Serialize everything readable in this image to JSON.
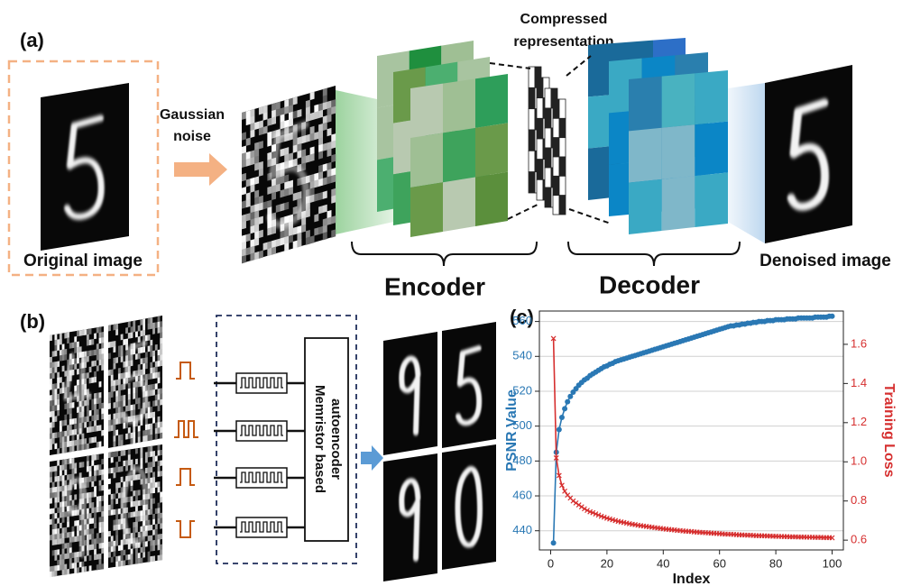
{
  "panels": {
    "a": {
      "label": "(a)",
      "input_caption": "Original image",
      "noise_label": [
        "Gaussian",
        "noise"
      ],
      "compressed_label": [
        "Compressed",
        "representation"
      ],
      "encoder_label": "Encoder",
      "decoder_label": "Decoder",
      "output_caption": "Denoised image"
    },
    "b": {
      "label": "(b)",
      "block_label": [
        "Memristor based",
        "autoencoder"
      ]
    },
    "c": {
      "label": "(c)"
    }
  },
  "chart_data": {
    "type": "line",
    "xlabel": "Index",
    "ylabel": "PSNR Value",
    "y2label": "Training Loss",
    "x": [
      1,
      2,
      3,
      4,
      5,
      6,
      7,
      8,
      9,
      10,
      11,
      12,
      13,
      14,
      15,
      16,
      17,
      18,
      19,
      20,
      21,
      22,
      23,
      24,
      25,
      26,
      27,
      28,
      29,
      30,
      31,
      32,
      33,
      34,
      35,
      36,
      37,
      38,
      39,
      40,
      41,
      42,
      43,
      44,
      45,
      46,
      47,
      48,
      49,
      50,
      51,
      52,
      53,
      54,
      55,
      56,
      57,
      58,
      59,
      60,
      61,
      62,
      63,
      64,
      65,
      66,
      67,
      68,
      69,
      70,
      71,
      72,
      73,
      74,
      75,
      76,
      77,
      78,
      79,
      80,
      81,
      82,
      83,
      84,
      85,
      86,
      87,
      88,
      89,
      90,
      91,
      92,
      93,
      94,
      95,
      96,
      97,
      98,
      99,
      100
    ],
    "xlim": [
      -4,
      104
    ],
    "xticks": [
      0,
      20,
      40,
      60,
      80,
      100
    ],
    "ylim": [
      429,
      566
    ],
    "yticks": [
      440,
      460,
      480,
      500,
      520,
      540,
      560
    ],
    "y2lim": [
      0.55,
      1.77
    ],
    "y2ticks": [
      0.6,
      0.8,
      {
        "value": 1,
        "label": "1.0"
      },
      1.2,
      1.4,
      1.6
    ],
    "grid": true,
    "series": [
      {
        "color": "#2a78b4",
        "marker": "circle",
        "values": [
          433,
          485,
          498,
          505,
          510,
          514,
          517,
          519.5,
          521.5,
          523.5,
          525,
          526.5,
          527.5,
          529,
          530,
          531,
          532,
          533,
          534,
          534.5,
          535.5,
          536,
          537,
          537.5,
          538,
          538.5,
          539,
          539.5,
          540,
          540.5,
          541,
          541.5,
          542,
          542.5,
          543,
          543.5,
          544,
          544.5,
          545,
          545.5,
          546,
          546.5,
          547,
          547.5,
          548,
          548.5,
          549,
          549.5,
          550,
          550.5,
          551,
          551.5,
          552,
          552.5,
          553,
          553.5,
          554,
          554.5,
          555,
          555.5,
          556,
          556.5,
          557,
          557.5,
          557.5,
          558,
          558,
          558.5,
          558.5,
          559,
          559,
          559.5,
          559.5,
          560,
          560,
          560,
          560.5,
          560.5,
          560.5,
          561,
          561,
          561,
          561,
          561.5,
          561.5,
          561.5,
          561.5,
          562,
          562,
          562,
          562,
          562,
          562,
          562.5,
          562.5,
          562.5,
          562.5,
          562.5,
          563,
          563
        ]
      },
      {
        "color": "#d62f2f",
        "marker": "x",
        "axis": "y2",
        "values": [
          1.63,
          1.02,
          0.93,
          0.88,
          0.85,
          0.83,
          0.815,
          0.8,
          0.79,
          0.78,
          0.77,
          0.76,
          0.752,
          0.745,
          0.74,
          0.734,
          0.728,
          0.722,
          0.717,
          0.712,
          0.708,
          0.704,
          0.7,
          0.696,
          0.693,
          0.69,
          0.687,
          0.684,
          0.681,
          0.679,
          0.676,
          0.674,
          0.672,
          0.67,
          0.668,
          0.666,
          0.664,
          0.662,
          0.66,
          0.658,
          0.656,
          0.655,
          0.653,
          0.652,
          0.65,
          0.649,
          0.647,
          0.646,
          0.645,
          0.644,
          0.642,
          0.641,
          0.64,
          0.639,
          0.638,
          0.637,
          0.636,
          0.635,
          0.634,
          0.633,
          0.632,
          0.631,
          0.63,
          0.63,
          0.629,
          0.628,
          0.627,
          0.627,
          0.626,
          0.625,
          0.625,
          0.624,
          0.623,
          0.623,
          0.622,
          0.622,
          0.621,
          0.621,
          0.62,
          0.62,
          0.619,
          0.619,
          0.618,
          0.618,
          0.617,
          0.617,
          0.617,
          0.616,
          0.616,
          0.616,
          0.615,
          0.615,
          0.615,
          0.614,
          0.614,
          0.614,
          0.613,
          0.613,
          0.613,
          0.612
        ]
      }
    ]
  }
}
